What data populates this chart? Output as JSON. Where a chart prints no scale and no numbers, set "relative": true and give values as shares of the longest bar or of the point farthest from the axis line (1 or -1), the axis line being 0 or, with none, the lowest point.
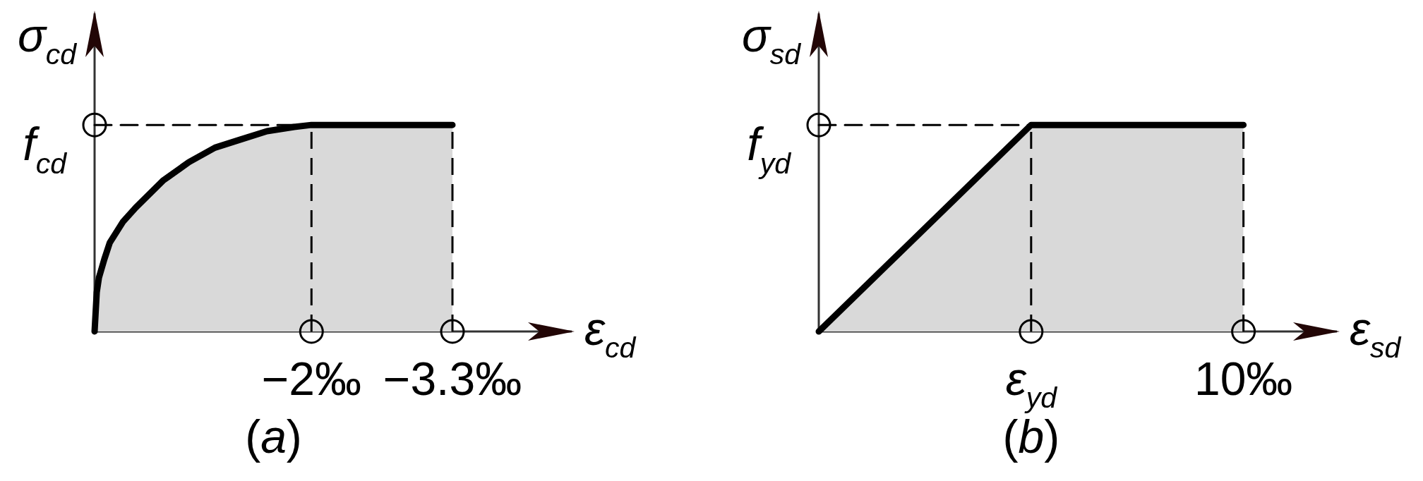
{
  "chart_data": [
    {
      "type": "area",
      "title": "(a)",
      "xlabel": "ε$_{cd}$",
      "ylabel": "σ$_{cd}$",
      "relative": true,
      "x": [
        0,
        -0.02,
        -0.04,
        -0.09,
        -0.14,
        -0.26,
        -0.38,
        -0.63,
        -0.87,
        -1.11,
        -1.35,
        -1.59,
        -1.84,
        -2,
        -3.3
      ],
      "series": [
        {
          "color": "#d9d9d9",
          "values": [
            0,
            0.19,
            0.26,
            0.35,
            0.43,
            0.53,
            0.6,
            0.73,
            0.82,
            0.89,
            0.93,
            0.97,
            0.99,
            1,
            1
          ]
        },
        {
          "type": "line",
          "color": "#000000",
          "line_style": "dashed",
          "x": [
            0,
            -2
          ],
          "values": [
            1,
            1
          ]
        },
        {
          "type": "scatter",
          "color": "#000000",
          "marker": "circle",
          "x": [
            0,
            -2,
            -3.3
          ],
          "values": [
            1,
            0,
            0
          ]
        }
      ],
      "xlim": [
        0,
        -4.4
      ],
      "xticks": [
        {
          "value": -2,
          "label": "−2‰"
        },
        {
          "value": -3.3,
          "label": "−3.3‰"
        }
      ],
      "ref_lines": [
        {
          "axis": "x",
          "value": -2,
          "line_style": "dashed"
        },
        {
          "axis": "x",
          "value": -3.3,
          "line_style": "dashed"
        }
      ],
      "annotations": [
        {
          "text": "f$_{cd}$",
          "x": 0,
          "y": 1
        }
      ]
    },
    {
      "type": "area",
      "title": "(b)",
      "xlabel": "ε$_{sd}$",
      "ylabel": "σ$_{sd}$",
      "relative": true,
      "categories": [
        null,
        "ε$_{yd}$",
        "10‰"
      ],
      "series": [
        {
          "color": "#d9d9d9",
          "values": [
            0,
            1,
            1
          ]
        },
        {
          "type": "line",
          "color": "#000000",
          "line_style": "dashed",
          "values": [
            1,
            1,
            null
          ]
        },
        {
          "type": "scatter",
          "color": "#000000",
          "marker": "circle",
          "values": [
            1,
            0,
            0
          ]
        }
      ],
      "ref_lines": [
        {
          "axis": "x",
          "value": "ε$_{yd}$",
          "line_style": "dashed"
        },
        {
          "axis": "x",
          "value": "10‰",
          "line_style": "dashed"
        }
      ],
      "annotations": [
        "f$_{yd}$"
      ]
    }
  ]
}
